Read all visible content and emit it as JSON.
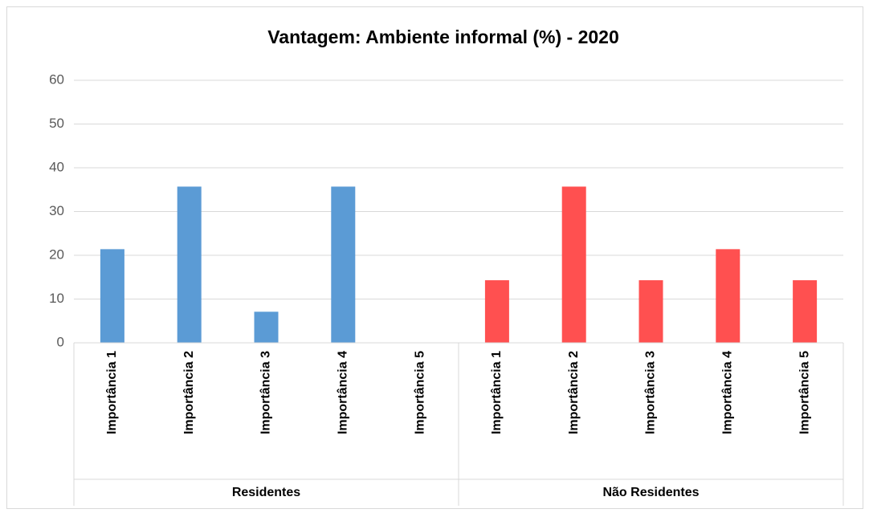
{
  "chart_data": {
    "type": "bar",
    "title": "Vantagem: Ambiente informal (%) - 2020",
    "groups": [
      {
        "name": "Residentes",
        "color": "#5b9bd5",
        "categories": [
          "Importância 1",
          "Importância 2",
          "Importância 3",
          "Importância 4",
          "Importância 5"
        ],
        "values": [
          21.4,
          35.7,
          7.1,
          35.7,
          0
        ]
      },
      {
        "name": "Não Residentes",
        "color": "#ff5050",
        "categories": [
          "Importância 1",
          "Importância 2",
          "Importância 3",
          "Importância 4",
          "Importância 5"
        ],
        "values": [
          14.3,
          35.7,
          14.3,
          21.4,
          14.3
        ]
      }
    ],
    "ylim": [
      0,
      60
    ],
    "yticks": [
      0,
      10,
      20,
      30,
      40,
      50,
      60
    ],
    "grid": true
  }
}
